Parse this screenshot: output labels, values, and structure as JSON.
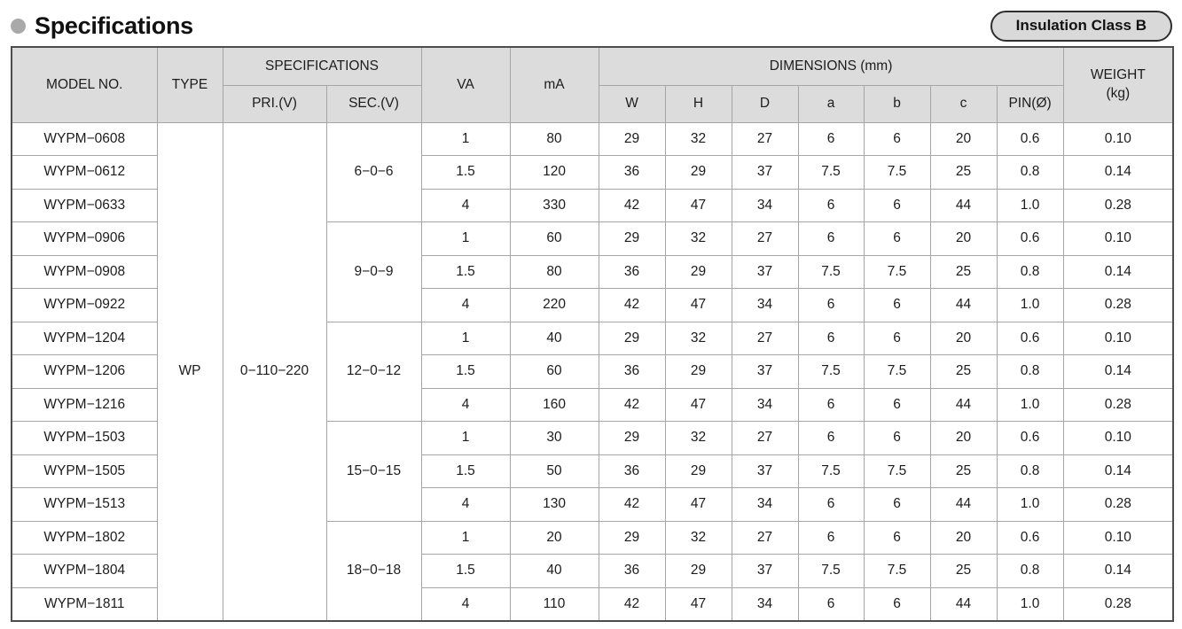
{
  "page": {
    "title": "Specifications",
    "badge": "Insulation Class B"
  },
  "colors": {
    "header_bg": "#dcdcdc",
    "border_inner": "#a6a6a6",
    "border_outer": "#4d4d4d",
    "text": "#1c1c1c",
    "bullet": "#a9a9a9",
    "badge_bg": "#d9d9d9",
    "badge_border": "#2e2e2e",
    "page_bg": "#ffffff"
  },
  "table": {
    "headers": {
      "model_no": "MODEL NO.",
      "type": "TYPE",
      "specifications": "SPECIFICATIONS",
      "pri": "PRI.(V)",
      "sec": "SEC.(V)",
      "va": "VA",
      "ma": "mA",
      "dimensions": "DIMENSIONS (mm)",
      "w": "W",
      "h": "H",
      "d": "D",
      "a": "a",
      "b": "b",
      "c": "c",
      "pin": "PIN(Ø)",
      "weight_line1": "WEIGHT",
      "weight_line2": "(kg)"
    },
    "type_value": "WP",
    "pri_value": "0−110−220",
    "groups": [
      {
        "sec": "6−0−6",
        "rows": [
          {
            "model": "WYPM−0608",
            "va": "1",
            "ma": "80",
            "w": "29",
            "h": "32",
            "d": "27",
            "a": "6",
            "b": "6",
            "c": "20",
            "pin": "0.6",
            "weight": "0.10"
          },
          {
            "model": "WYPM−0612",
            "va": "1.5",
            "ma": "120",
            "w": "36",
            "h": "29",
            "d": "37",
            "a": "7.5",
            "b": "7.5",
            "c": "25",
            "pin": "0.8",
            "weight": "0.14"
          },
          {
            "model": "WYPM−0633",
            "va": "4",
            "ma": "330",
            "w": "42",
            "h": "47",
            "d": "34",
            "a": "6",
            "b": "6",
            "c": "44",
            "pin": "1.0",
            "weight": "0.28"
          }
        ]
      },
      {
        "sec": "9−0−9",
        "rows": [
          {
            "model": "WYPM−0906",
            "va": "1",
            "ma": "60",
            "w": "29",
            "h": "32",
            "d": "27",
            "a": "6",
            "b": "6",
            "c": "20",
            "pin": "0.6",
            "weight": "0.10"
          },
          {
            "model": "WYPM−0908",
            "va": "1.5",
            "ma": "80",
            "w": "36",
            "h": "29",
            "d": "37",
            "a": "7.5",
            "b": "7.5",
            "c": "25",
            "pin": "0.8",
            "weight": "0.14"
          },
          {
            "model": "WYPM−0922",
            "va": "4",
            "ma": "220",
            "w": "42",
            "h": "47",
            "d": "34",
            "a": "6",
            "b": "6",
            "c": "44",
            "pin": "1.0",
            "weight": "0.28"
          }
        ]
      },
      {
        "sec": "12−0−12",
        "rows": [
          {
            "model": "WYPM−1204",
            "va": "1",
            "ma": "40",
            "w": "29",
            "h": "32",
            "d": "27",
            "a": "6",
            "b": "6",
            "c": "20",
            "pin": "0.6",
            "weight": "0.10"
          },
          {
            "model": "WYPM−1206",
            "va": "1.5",
            "ma": "60",
            "w": "36",
            "h": "29",
            "d": "37",
            "a": "7.5",
            "b": "7.5",
            "c": "25",
            "pin": "0.8",
            "weight": "0.14"
          },
          {
            "model": "WYPM−1216",
            "va": "4",
            "ma": "160",
            "w": "42",
            "h": "47",
            "d": "34",
            "a": "6",
            "b": "6",
            "c": "44",
            "pin": "1.0",
            "weight": "0.28"
          }
        ]
      },
      {
        "sec": "15−0−15",
        "rows": [
          {
            "model": "WYPM−1503",
            "va": "1",
            "ma": "30",
            "w": "29",
            "h": "32",
            "d": "27",
            "a": "6",
            "b": "6",
            "c": "20",
            "pin": "0.6",
            "weight": "0.10"
          },
          {
            "model": "WYPM−1505",
            "va": "1.5",
            "ma": "50",
            "w": "36",
            "h": "29",
            "d": "37",
            "a": "7.5",
            "b": "7.5",
            "c": "25",
            "pin": "0.8",
            "weight": "0.14"
          },
          {
            "model": "WYPM−1513",
            "va": "4",
            "ma": "130",
            "w": "42",
            "h": "47",
            "d": "34",
            "a": "6",
            "b": "6",
            "c": "44",
            "pin": "1.0",
            "weight": "0.28"
          }
        ]
      },
      {
        "sec": "18−0−18",
        "rows": [
          {
            "model": "WYPM−1802",
            "va": "1",
            "ma": "20",
            "w": "29",
            "h": "32",
            "d": "27",
            "a": "6",
            "b": "6",
            "c": "20",
            "pin": "0.6",
            "weight": "0.10"
          },
          {
            "model": "WYPM−1804",
            "va": "1.5",
            "ma": "40",
            "w": "36",
            "h": "29",
            "d": "37",
            "a": "7.5",
            "b": "7.5",
            "c": "25",
            "pin": "0.8",
            "weight": "0.14"
          },
          {
            "model": "WYPM−1811",
            "va": "4",
            "ma": "110",
            "w": "42",
            "h": "47",
            "d": "34",
            "a": "6",
            "b": "6",
            "c": "44",
            "pin": "1.0",
            "weight": "0.28"
          }
        ]
      }
    ]
  }
}
